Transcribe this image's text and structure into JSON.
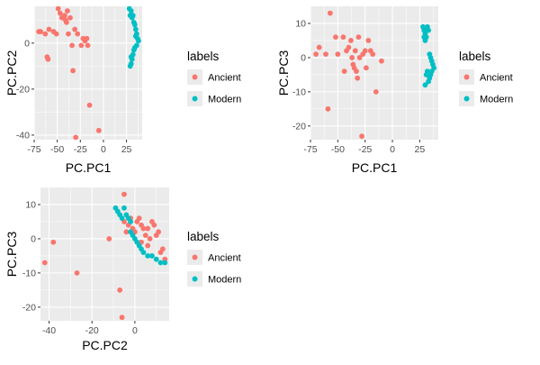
{
  "colors": {
    "Ancient": "#F8766D",
    "Modern": "#00BFC4",
    "panel": "#EBEBEB",
    "grid": "#FFFFFF"
  },
  "chart_data": [
    {
      "type": "scatter",
      "xlabel": "PC.PC1",
      "ylabel": "PC.PC2",
      "xlim": [
        -75,
        42
      ],
      "ylim": [
        -42,
        16
      ],
      "xticks": [
        -75,
        -50,
        -25,
        0,
        25
      ],
      "yticks": [
        -40,
        -20,
        0
      ],
      "grid": true,
      "legend": {
        "title": "labels",
        "position": "right",
        "entries": [
          "Ancient",
          "Modern"
        ]
      },
      "series": [
        {
          "name": "Ancient",
          "points": [
            [
              -70,
              5
            ],
            [
              -68,
              5
            ],
            [
              -63,
              4
            ],
            [
              -59,
              6
            ],
            [
              -61,
              -6
            ],
            [
              -60,
              -7
            ],
            [
              -54,
              5
            ],
            [
              -51,
              4
            ],
            [
              -49,
              15
            ],
            [
              -47,
              13
            ],
            [
              -45,
              11
            ],
            [
              -42,
              12
            ],
            [
              -41,
              10
            ],
            [
              -40,
              9
            ],
            [
              -39,
              14
            ],
            [
              -38,
              4
            ],
            [
              -36,
              11
            ],
            [
              -34,
              -1
            ],
            [
              -33,
              -12
            ],
            [
              -31,
              6
            ],
            [
              -30,
              -41
            ],
            [
              -28,
              4
            ],
            [
              -24,
              -1
            ],
            [
              -22,
              2
            ],
            [
              -20,
              1
            ],
            [
              -18,
              2
            ],
            [
              -17,
              -1
            ],
            [
              -15,
              -27
            ],
            [
              -5,
              -38
            ]
          ]
        },
        {
          "name": "Modern",
          "points": [
            [
              28,
              15
            ],
            [
              29,
              12
            ],
            [
              30,
              14
            ],
            [
              31,
              11
            ],
            [
              32,
              12
            ],
            [
              33,
              9
            ],
            [
              34,
              8
            ],
            [
              35,
              6
            ],
            [
              36,
              4
            ],
            [
              37,
              2
            ],
            [
              38,
              1
            ],
            [
              36,
              -1
            ],
            [
              34,
              -2
            ],
            [
              33,
              -3
            ],
            [
              32,
              -5
            ],
            [
              31,
              -7
            ],
            [
              30,
              -9
            ],
            [
              29,
              -10
            ],
            [
              30,
              -6
            ],
            [
              35,
              3
            ]
          ]
        }
      ]
    },
    {
      "type": "scatter",
      "xlabel": "PC.PC1",
      "ylabel": "PC.PC3",
      "xlim": [
        -75,
        42
      ],
      "ylim": [
        -24,
        15
      ],
      "xticks": [
        -75,
        -50,
        -25,
        0,
        25
      ],
      "yticks": [
        -20,
        -10,
        0,
        10
      ],
      "grid": true,
      "legend": {
        "title": "labels",
        "position": "right",
        "entries": [
          "Ancient",
          "Modern"
        ]
      },
      "series": [
        {
          "name": "Ancient",
          "points": [
            [
              -70,
              1
            ],
            [
              -67,
              3
            ],
            [
              -61,
              1
            ],
            [
              -59,
              -15
            ],
            [
              -57,
              13
            ],
            [
              -52,
              6
            ],
            [
              -50,
              1
            ],
            [
              -45,
              6
            ],
            [
              -44,
              -4
            ],
            [
              -42,
              2
            ],
            [
              -40,
              3
            ],
            [
              -38,
              5
            ],
            [
              -37,
              0
            ],
            [
              -36,
              -2
            ],
            [
              -35,
              -3
            ],
            [
              -34,
              2
            ],
            [
              -33,
              -4
            ],
            [
              -32,
              -6
            ],
            [
              -31,
              6
            ],
            [
              -30,
              0
            ],
            [
              -28,
              -23
            ],
            [
              -27,
              1
            ],
            [
              -25,
              2
            ],
            [
              -24,
              -3
            ],
            [
              -22,
              5
            ],
            [
              -20,
              2
            ],
            [
              -18,
              1
            ],
            [
              -15,
              -10
            ],
            [
              -10,
              -1
            ]
          ]
        },
        {
          "name": "Modern",
          "points": [
            [
              28,
              9
            ],
            [
              29,
              8
            ],
            [
              30,
              7
            ],
            [
              31,
              6
            ],
            [
              32,
              9
            ],
            [
              33,
              8
            ],
            [
              34,
              1
            ],
            [
              35,
              0
            ],
            [
              36,
              -1
            ],
            [
              37,
              -2
            ],
            [
              38,
              -3
            ],
            [
              36,
              -4
            ],
            [
              35,
              -5
            ],
            [
              34,
              -6
            ],
            [
              33,
              -7
            ],
            [
              32,
              -4
            ],
            [
              31,
              -5
            ],
            [
              30,
              -8
            ],
            [
              29,
              6
            ],
            [
              30,
              5
            ]
          ]
        }
      ]
    },
    {
      "type": "scatter",
      "xlabel": "PC.PC2",
      "ylabel": "PC.PC3",
      "xlim": [
        -44,
        16
      ],
      "ylim": [
        -24,
        15
      ],
      "xticks": [
        -40,
        -20,
        0
      ],
      "yticks": [
        -20,
        -10,
        0,
        10
      ],
      "grid": true,
      "legend": {
        "title": "labels",
        "position": "right",
        "entries": [
          "Ancient",
          "Modern"
        ]
      },
      "series": [
        {
          "name": "Ancient",
          "points": [
            [
              -42,
              -7
            ],
            [
              -38,
              -1
            ],
            [
              -27,
              -10
            ],
            [
              -12,
              0
            ],
            [
              -7,
              -15
            ],
            [
              -6,
              -23
            ],
            [
              -5,
              13
            ],
            [
              -5,
              5
            ],
            [
              -4,
              2
            ],
            [
              -3,
              4
            ],
            [
              -2,
              6
            ],
            [
              -1,
              3
            ],
            [
              0,
              2
            ],
            [
              1,
              5
            ],
            [
              2,
              6
            ],
            [
              3,
              4
            ],
            [
              4,
              3
            ],
            [
              5,
              1
            ],
            [
              6,
              3
            ],
            [
              7,
              0
            ],
            [
              8,
              5
            ],
            [
              9,
              4
            ],
            [
              10,
              1
            ],
            [
              11,
              2
            ],
            [
              12,
              -4
            ],
            [
              13,
              -3
            ],
            [
              14,
              -6
            ],
            [
              6,
              -2
            ],
            [
              3,
              -1
            ]
          ]
        },
        {
          "name": "Modern",
          "points": [
            [
              -9,
              9
            ],
            [
              -8,
              8
            ],
            [
              -7,
              7
            ],
            [
              -6,
              6
            ],
            [
              -5,
              9
            ],
            [
              -4,
              7
            ],
            [
              -3,
              6
            ],
            [
              -2,
              5
            ],
            [
              -1,
              1
            ],
            [
              0,
              0
            ],
            [
              1,
              -1
            ],
            [
              2,
              -2
            ],
            [
              3,
              -3
            ],
            [
              4,
              -4
            ],
            [
              6,
              -5
            ],
            [
              8,
              -5
            ],
            [
              10,
              -6
            ],
            [
              12,
              -7
            ],
            [
              14,
              -7
            ],
            [
              -2,
              2
            ]
          ]
        }
      ]
    }
  ]
}
